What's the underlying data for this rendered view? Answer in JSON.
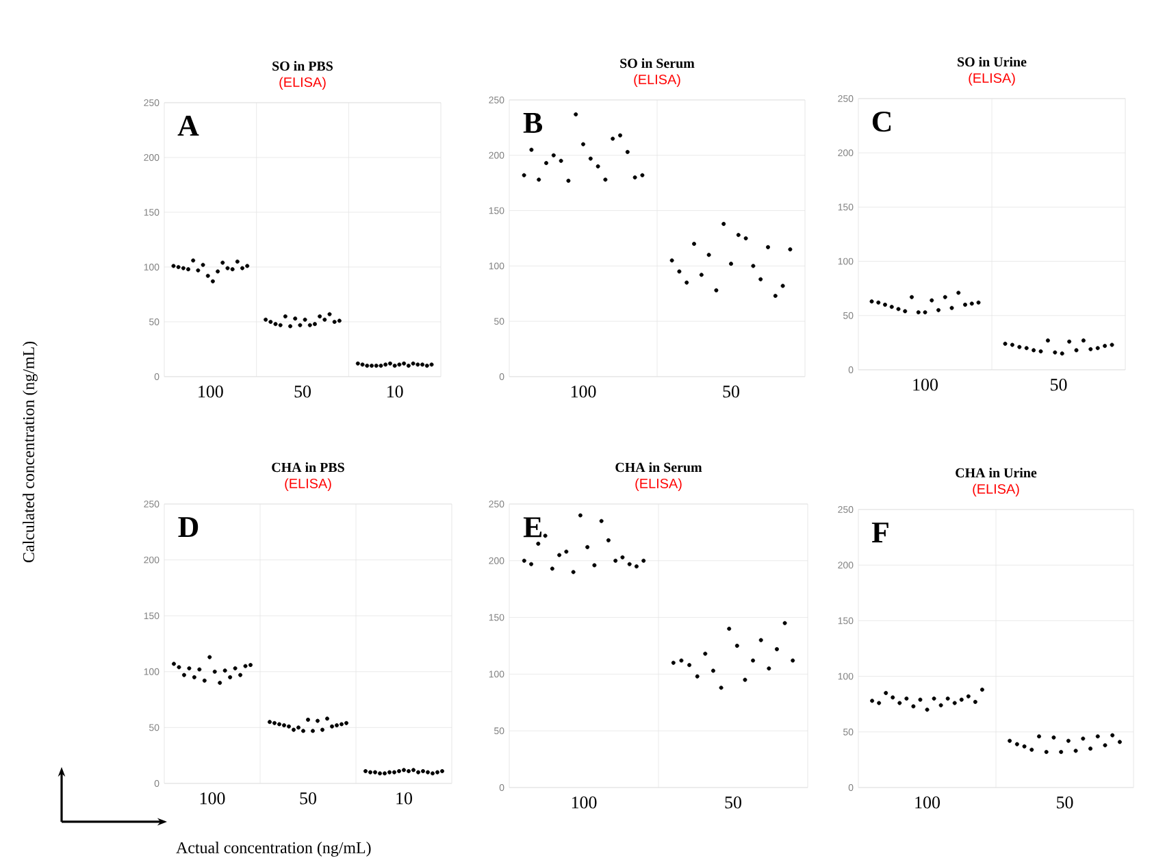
{
  "chart_data": [
    {
      "type": "scatter",
      "title": "SO in PBS",
      "subtitle": "(ELISA)",
      "annotations": [
        "A"
      ],
      "categories": [
        "100",
        "50",
        "10"
      ],
      "ylim": [
        0,
        250
      ],
      "yticks": [
        0,
        50,
        100,
        150,
        200,
        250
      ],
      "grid": true,
      "marker": "circle",
      "series": [
        {
          "color": "#000000",
          "x": [
            "100",
            "100",
            "100",
            "100",
            "100",
            "100",
            "100",
            "100",
            "100",
            "100",
            "100",
            "100",
            "100",
            "100",
            "100",
            "100",
            "50",
            "50",
            "50",
            "50",
            "50",
            "50",
            "50",
            "50",
            "50",
            "50",
            "50",
            "50",
            "50",
            "50",
            "50",
            "50",
            "10",
            "10",
            "10",
            "10",
            "10",
            "10",
            "10",
            "10",
            "10",
            "10",
            "10",
            "10",
            "10",
            "10",
            "10",
            "10",
            "10"
          ],
          "values": [
            101,
            100,
            99,
            98,
            106,
            97,
            102,
            92,
            87,
            96,
            104,
            99,
            98,
            105,
            99,
            101,
            52,
            50,
            48,
            47,
            55,
            46,
            53,
            47,
            52,
            47,
            48,
            55,
            52,
            57,
            50,
            51,
            12,
            11,
            10,
            10,
            10,
            10,
            11,
            12,
            10,
            11,
            12,
            10,
            12,
            11,
            11,
            10,
            11
          ]
        }
      ]
    },
    {
      "type": "scatter",
      "title": "SO in Serum",
      "subtitle": "(ELISA)",
      "annotations": [
        "B"
      ],
      "categories": [
        "100",
        "50"
      ],
      "ylim": [
        0,
        250
      ],
      "yticks": [
        0,
        50,
        100,
        150,
        200,
        250
      ],
      "grid": true,
      "marker": "circle",
      "series": [
        {
          "color": "#000000",
          "x": [
            "100",
            "100",
            "100",
            "100",
            "100",
            "100",
            "100",
            "100",
            "100",
            "100",
            "100",
            "100",
            "100",
            "100",
            "100",
            "100",
            "100",
            "50",
            "50",
            "50",
            "50",
            "50",
            "50",
            "50",
            "50",
            "50",
            "50",
            "50",
            "50",
            "50",
            "50",
            "50",
            "50",
            "50"
          ],
          "values": [
            182,
            205,
            178,
            193,
            200,
            195,
            177,
            237,
            210,
            197,
            190,
            178,
            215,
            218,
            203,
            180,
            182,
            105,
            95,
            85,
            120,
            92,
            110,
            78,
            138,
            102,
            128,
            125,
            100,
            88,
            117,
            73,
            82,
            115
          ]
        }
      ]
    },
    {
      "type": "scatter",
      "title": "SO in Urine",
      "subtitle": "(ELISA)",
      "annotations": [
        "C"
      ],
      "categories": [
        "100",
        "50"
      ],
      "ylim": [
        0,
        250
      ],
      "yticks": [
        0,
        50,
        100,
        150,
        200,
        250
      ],
      "grid": true,
      "marker": "circle",
      "series": [
        {
          "color": "#000000",
          "x": [
            "100",
            "100",
            "100",
            "100",
            "100",
            "100",
            "100",
            "100",
            "100",
            "100",
            "100",
            "100",
            "100",
            "100",
            "100",
            "100",
            "100",
            "50",
            "50",
            "50",
            "50",
            "50",
            "50",
            "50",
            "50",
            "50",
            "50",
            "50",
            "50",
            "50",
            "50",
            "50",
            "50"
          ],
          "values": [
            63,
            62,
            60,
            58,
            56,
            54,
            67,
            53,
            53,
            64,
            55,
            67,
            57,
            71,
            60,
            61,
            62,
            24,
            23,
            21,
            20,
            18,
            17,
            27,
            16,
            15,
            26,
            18,
            27,
            19,
            20,
            22,
            23
          ]
        }
      ]
    },
    {
      "type": "scatter",
      "title": "CHA in PBS",
      "subtitle": "(ELISA)",
      "annotations": [
        "D"
      ],
      "xlabel": "Actual concentration (ng/mL)",
      "ylabel": "Calculated concentration (ng/mL)",
      "categories": [
        "100",
        "50",
        "10"
      ],
      "ylim": [
        0,
        250
      ],
      "yticks": [
        0,
        50,
        100,
        150,
        200,
        250
      ],
      "grid": true,
      "marker": "circle",
      "series": [
        {
          "color": "#000000",
          "x": [
            "100",
            "100",
            "100",
            "100",
            "100",
            "100",
            "100",
            "100",
            "100",
            "100",
            "100",
            "100",
            "100",
            "100",
            "100",
            "100",
            "50",
            "50",
            "50",
            "50",
            "50",
            "50",
            "50",
            "50",
            "50",
            "50",
            "50",
            "50",
            "50",
            "50",
            "50",
            "50",
            "50",
            "10",
            "10",
            "10",
            "10",
            "10",
            "10",
            "10",
            "10",
            "10",
            "10",
            "10",
            "10",
            "10",
            "10",
            "10",
            "10",
            "10"
          ],
          "values": [
            107,
            104,
            97,
            103,
            95,
            102,
            92,
            113,
            100,
            90,
            101,
            95,
            103,
            97,
            105,
            106,
            55,
            54,
            53,
            52,
            51,
            48,
            50,
            47,
            57,
            47,
            56,
            48,
            58,
            51,
            52,
            53,
            54,
            11,
            10,
            10,
            9,
            9,
            10,
            10,
            11,
            12,
            11,
            12,
            10,
            11,
            10,
            9,
            10,
            11
          ]
        }
      ]
    },
    {
      "type": "scatter",
      "title": "CHA in Serum",
      "subtitle": "(ELISA)",
      "annotations": [
        "E"
      ],
      "categories": [
        "100",
        "50"
      ],
      "ylim": [
        0,
        250
      ],
      "yticks": [
        0,
        50,
        100,
        150,
        200,
        250
      ],
      "grid": true,
      "marker": "circle",
      "series": [
        {
          "color": "#000000",
          "x": [
            "100",
            "100",
            "100",
            "100",
            "100",
            "100",
            "100",
            "100",
            "100",
            "100",
            "100",
            "100",
            "100",
            "100",
            "100",
            "100",
            "100",
            "100",
            "50",
            "50",
            "50",
            "50",
            "50",
            "50",
            "50",
            "50",
            "50",
            "50",
            "50",
            "50",
            "50",
            "50",
            "50",
            "50"
          ],
          "values": [
            200,
            197,
            215,
            222,
            193,
            205,
            208,
            190,
            240,
            212,
            196,
            235,
            218,
            200,
            203,
            197,
            195,
            200,
            110,
            112,
            108,
            98,
            118,
            103,
            88,
            140,
            125,
            95,
            112,
            130,
            105,
            122,
            145,
            112
          ]
        }
      ]
    },
    {
      "type": "scatter",
      "title": "CHA in Urine",
      "subtitle": "(ELISA)",
      "annotations": [
        "F"
      ],
      "categories": [
        "100",
        "50"
      ],
      "ylim": [
        0,
        250
      ],
      "yticks": [
        0,
        50,
        100,
        150,
        200,
        250
      ],
      "grid": true,
      "marker": "circle",
      "series": [
        {
          "color": "#000000",
          "x": [
            "100",
            "100",
            "100",
            "100",
            "100",
            "100",
            "100",
            "100",
            "100",
            "100",
            "100",
            "100",
            "100",
            "100",
            "100",
            "100",
            "100",
            "50",
            "50",
            "50",
            "50",
            "50",
            "50",
            "50",
            "50",
            "50",
            "50",
            "50",
            "50",
            "50",
            "50",
            "50",
            "50"
          ],
          "values": [
            78,
            76,
            85,
            81,
            76,
            80,
            73,
            79,
            70,
            80,
            74,
            80,
            76,
            79,
            82,
            77,
            88,
            42,
            39,
            37,
            34,
            46,
            32,
            45,
            32,
            42,
            33,
            44,
            35,
            46,
            38,
            47,
            41
          ]
        }
      ]
    }
  ]
}
